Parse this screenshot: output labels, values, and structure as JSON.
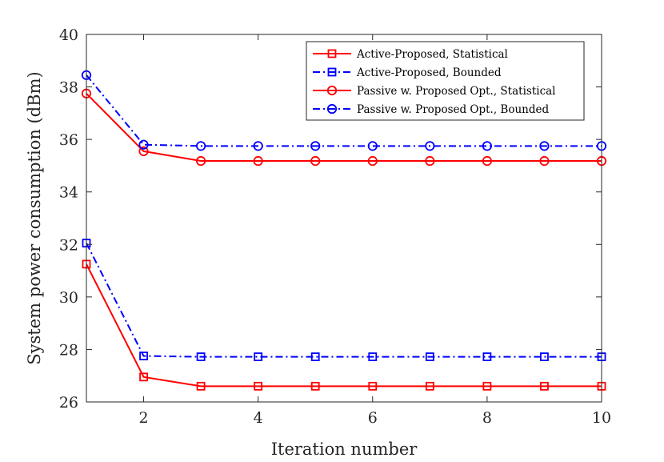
{
  "chart_data": {
    "type": "line",
    "title": "",
    "xlabel": "Iteration number",
    "ylabel": "System power consumption (dBm)",
    "xlim": [
      1,
      10
    ],
    "ylim": [
      26,
      40
    ],
    "xticks": [
      2,
      4,
      6,
      8,
      10
    ],
    "yticks": [
      26,
      28,
      30,
      32,
      34,
      36,
      38,
      40
    ],
    "x": [
      1,
      2,
      3,
      4,
      5,
      6,
      7,
      8,
      9,
      10
    ],
    "legend_position": "top-right",
    "grid": false,
    "series": [
      {
        "name": "Active-Proposed, Statistical",
        "values": [
          31.25,
          26.95,
          26.6,
          26.6,
          26.6,
          26.6,
          26.6,
          26.6,
          26.6,
          26.6
        ],
        "color": "#ff0000",
        "dash": "solid",
        "marker": "square"
      },
      {
        "name": "Active-Proposed, Bounded",
        "values": [
          32.05,
          27.75,
          27.72,
          27.72,
          27.72,
          27.72,
          27.72,
          27.72,
          27.72,
          27.72
        ],
        "color": "#0000ff",
        "dash": "dashdot",
        "marker": "square"
      },
      {
        "name": "Passive w. Proposed Opt., Statistical",
        "values": [
          37.75,
          35.55,
          35.18,
          35.18,
          35.18,
          35.18,
          35.18,
          35.18,
          35.18,
          35.18
        ],
        "color": "#ff0000",
        "dash": "solid",
        "marker": "circle"
      },
      {
        "name": "Passive w. Proposed Opt., Bounded",
        "values": [
          38.45,
          35.8,
          35.75,
          35.75,
          35.75,
          35.75,
          35.75,
          35.75,
          35.75,
          35.75
        ],
        "color": "#0000ff",
        "dash": "dashdot",
        "marker": "circle"
      }
    ]
  }
}
